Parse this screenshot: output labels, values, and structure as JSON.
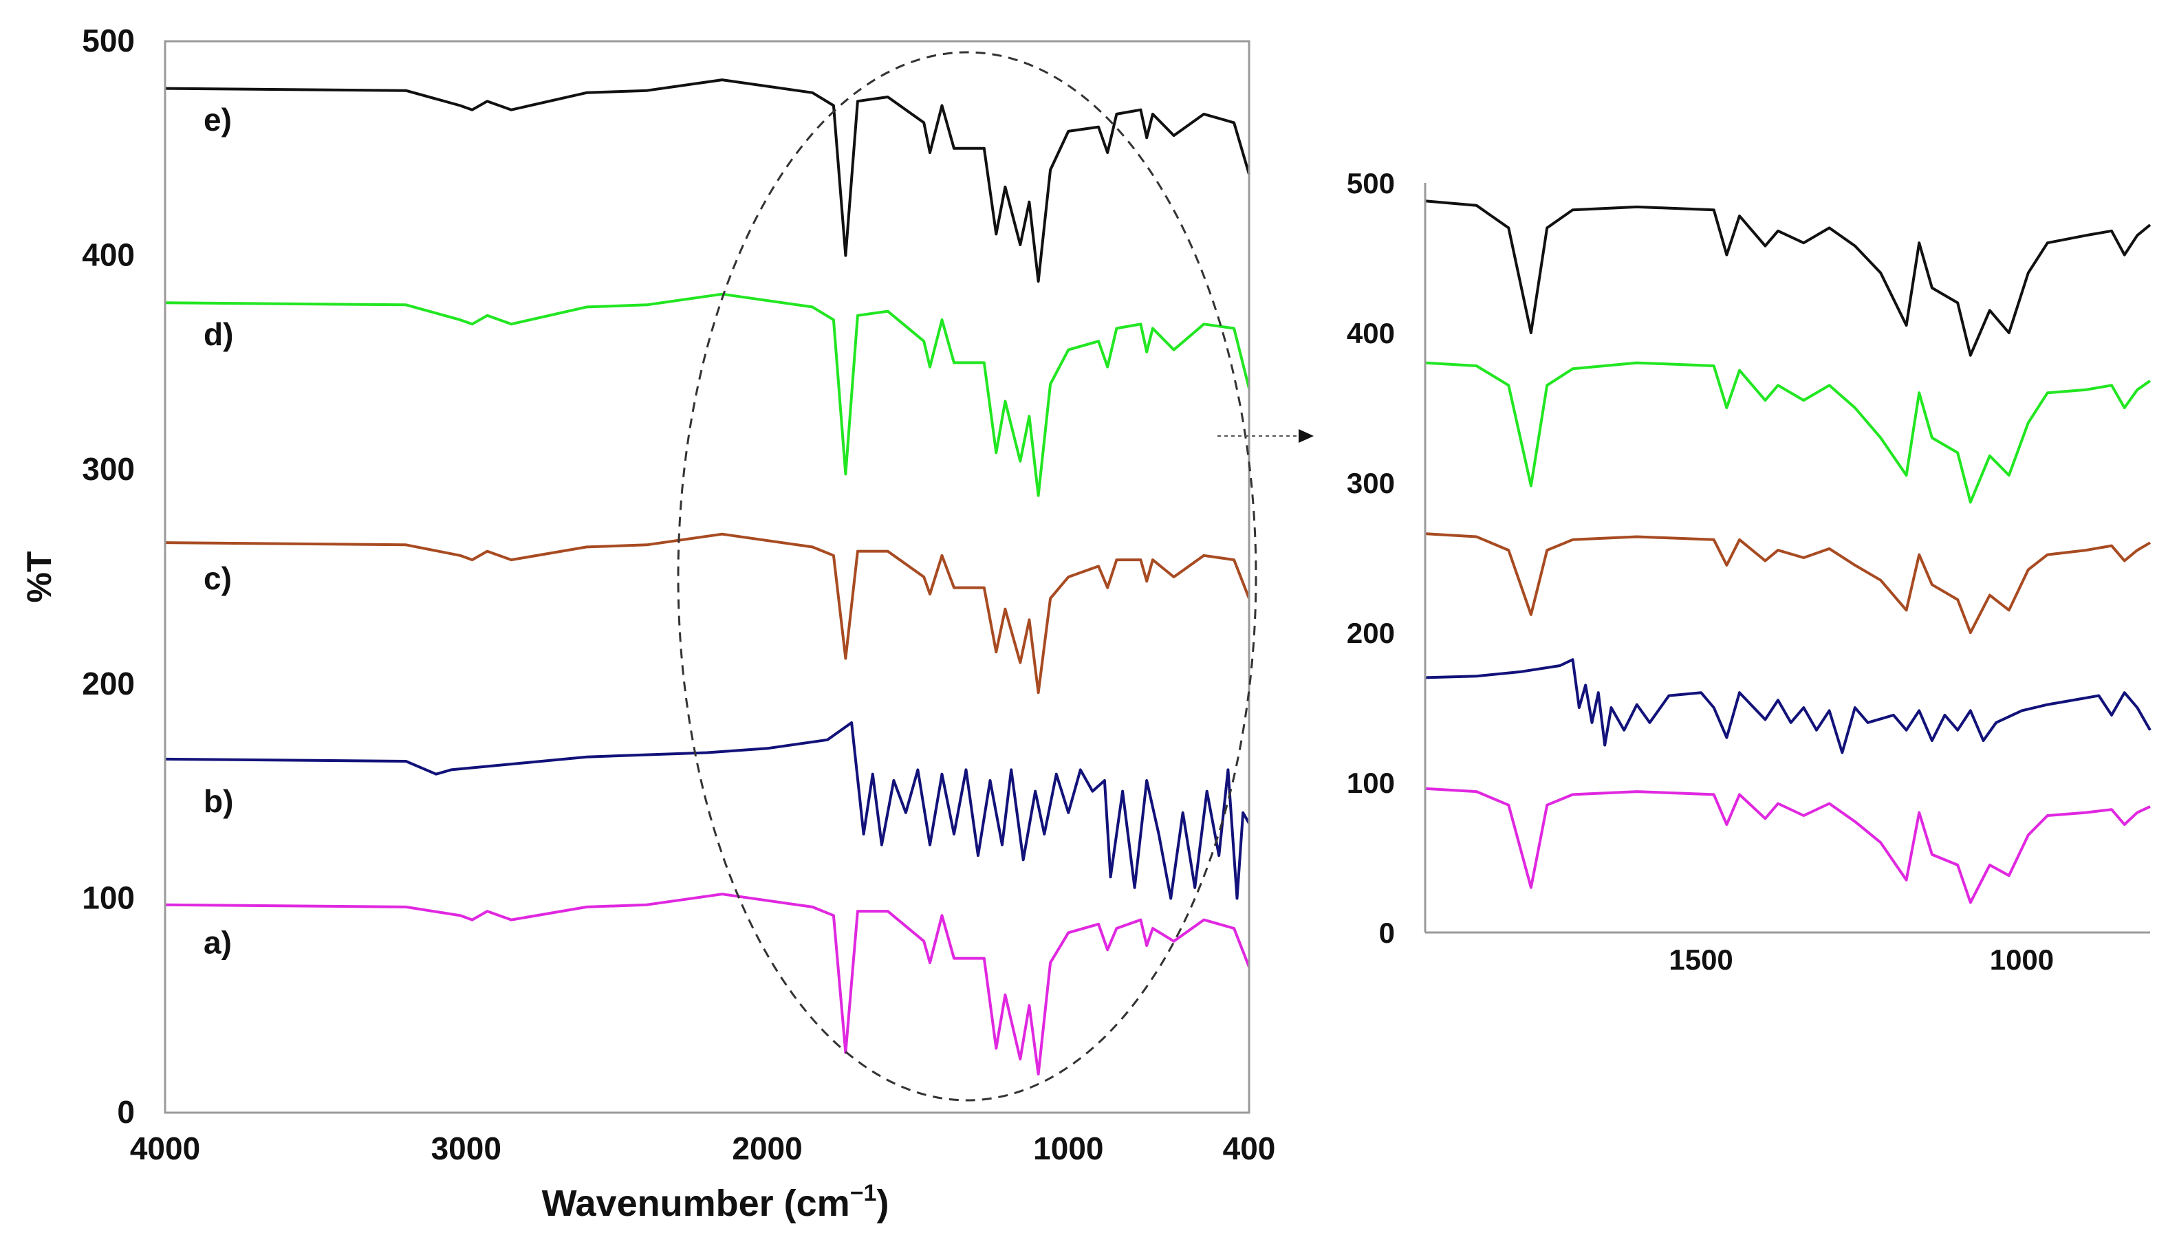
{
  "chart_data": [
    {
      "type": "line",
      "name": "main-spectrum",
      "xlabel_main": "Wavenumber (cm",
      "xlabel_sup": "−1",
      "xlabel_close": ")",
      "ylabel": "%T",
      "xlim": [
        4000,
        400
      ],
      "ylim": [
        0,
        500
      ],
      "x_ticks": [
        {
          "value": 4000,
          "label": "4000"
        },
        {
          "value": 3000,
          "label": "3000"
        },
        {
          "value": 2000,
          "label": "2000"
        },
        {
          "value": 1000,
          "label": "1000"
        },
        {
          "value": 400,
          "label": "400"
        }
      ],
      "y_ticks": [
        {
          "value": 0,
          "label": "0"
        },
        {
          "value": 100,
          "label": "100"
        },
        {
          "value": 200,
          "label": "200"
        },
        {
          "value": 300,
          "label": "300"
        },
        {
          "value": 400,
          "label": "400"
        },
        {
          "value": 500,
          "label": "500"
        }
      ],
      "annotation": "dashed ellipse highlighting the 2200-400 cm-1 region, arrow to zoomed inset",
      "series": [
        {
          "name": "e)",
          "label": "e)",
          "color": "#111111",
          "baseline": 478,
          "label_y": 464,
          "x": [
            4000,
            3200,
            3020,
            2980,
            2930,
            2850,
            2600,
            2400,
            2150,
            1850,
            1780,
            1740,
            1700,
            1600,
            1480,
            1460,
            1420,
            1380,
            1280,
            1240,
            1210,
            1160,
            1130,
            1100,
            1060,
            1000,
            900,
            870,
            840,
            760,
            740,
            720,
            650,
            550,
            450,
            400
          ],
          "y": [
            478,
            477,
            470,
            468,
            472,
            468,
            476,
            477,
            482,
            476,
            470,
            400,
            472,
            474,
            462,
            448,
            470,
            450,
            450,
            410,
            432,
            405,
            425,
            388,
            440,
            458,
            460,
            448,
            466,
            468,
            455,
            466,
            456,
            466,
            462,
            438
          ]
        },
        {
          "name": "d)",
          "label": "d)",
          "color": "#22e622",
          "baseline": 378,
          "label_y": 364,
          "x": [
            4000,
            3200,
            3020,
            2980,
            2930,
            2850,
            2600,
            2400,
            2150,
            1850,
            1780,
            1740,
            1700,
            1600,
            1480,
            1460,
            1420,
            1380,
            1280,
            1240,
            1210,
            1160,
            1130,
            1100,
            1060,
            1000,
            900,
            870,
            840,
            760,
            740,
            720,
            650,
            550,
            450,
            400
          ],
          "y": [
            378,
            377,
            370,
            368,
            372,
            368,
            376,
            377,
            382,
            376,
            370,
            298,
            372,
            374,
            360,
            348,
            370,
            350,
            350,
            308,
            332,
            304,
            325,
            288,
            340,
            356,
            360,
            348,
            366,
            368,
            355,
            366,
            356,
            368,
            366,
            338
          ]
        },
        {
          "name": "c)",
          "label": "c)",
          "color": "#a84b22",
          "baseline": 266,
          "label_y": 250,
          "x": [
            4000,
            3200,
            3020,
            2980,
            2930,
            2850,
            2600,
            2400,
            2150,
            1850,
            1780,
            1740,
            1700,
            1600,
            1480,
            1460,
            1420,
            1380,
            1280,
            1240,
            1210,
            1160,
            1130,
            1100,
            1060,
            1000,
            900,
            870,
            840,
            760,
            740,
            720,
            650,
            550,
            450,
            400
          ],
          "y": [
            266,
            265,
            260,
            258,
            262,
            258,
            264,
            265,
            270,
            264,
            260,
            212,
            262,
            262,
            250,
            242,
            260,
            245,
            245,
            215,
            235,
            210,
            230,
            196,
            240,
            250,
            255,
            245,
            258,
            258,
            248,
            258,
            250,
            260,
            258,
            240
          ]
        },
        {
          "name": "b)",
          "label": "b)",
          "color": "#12127a",
          "baseline": 165,
          "label_y": 146,
          "x": [
            4000,
            3200,
            3100,
            3050,
            2600,
            2200,
            2000,
            1800,
            1720,
            1680,
            1650,
            1620,
            1580,
            1540,
            1500,
            1460,
            1420,
            1380,
            1340,
            1300,
            1260,
            1220,
            1190,
            1150,
            1110,
            1080,
            1040,
            1000,
            960,
            920,
            880,
            860,
            820,
            780,
            740,
            700,
            660,
            620,
            580,
            540,
            500,
            470,
            440,
            420,
            400
          ],
          "y": [
            165,
            164,
            158,
            160,
            166,
            168,
            170,
            174,
            182,
            130,
            158,
            125,
            155,
            140,
            160,
            125,
            158,
            130,
            160,
            120,
            155,
            125,
            160,
            118,
            150,
            130,
            158,
            140,
            160,
            150,
            155,
            110,
            150,
            105,
            155,
            130,
            100,
            140,
            105,
            150,
            120,
            160,
            100,
            140,
            135
          ]
        },
        {
          "name": "a)",
          "label": "a)",
          "color": "#e028e0",
          "baseline": 97,
          "label_y": 80,
          "x": [
            4000,
            3200,
            3020,
            2980,
            2930,
            2850,
            2600,
            2400,
            2150,
            1850,
            1780,
            1740,
            1700,
            1600,
            1480,
            1460,
            1420,
            1380,
            1280,
            1240,
            1210,
            1160,
            1130,
            1100,
            1060,
            1000,
            900,
            870,
            840,
            760,
            740,
            720,
            650,
            550,
            450,
            400
          ],
          "y": [
            97,
            96,
            92,
            90,
            94,
            90,
            96,
            97,
            102,
            96,
            92,
            28,
            94,
            94,
            80,
            70,
            92,
            72,
            72,
            30,
            55,
            25,
            50,
            18,
            70,
            84,
            88,
            76,
            86,
            90,
            78,
            86,
            80,
            90,
            86,
            68
          ]
        }
      ]
    },
    {
      "type": "line",
      "name": "inset-spectrum",
      "xlim": [
        1930,
        800
      ],
      "ylim": [
        0,
        500
      ],
      "x_ticks": [
        {
          "value": 1500,
          "label": "1500"
        },
        {
          "value": 1000,
          "label": "1000"
        }
      ],
      "y_ticks": [
        {
          "value": 0,
          "label": "0"
        },
        {
          "value": 100,
          "label": "100"
        },
        {
          "value": 200,
          "label": "200"
        },
        {
          "value": 300,
          "label": "300"
        },
        {
          "value": 400,
          "label": "400"
        },
        {
          "value": 500,
          "label": "500"
        }
      ],
      "series": [
        {
          "name": "e)",
          "color": "#111111",
          "x": [
            1930,
            1850,
            1800,
            1765,
            1740,
            1700,
            1600,
            1480,
            1460,
            1440,
            1400,
            1380,
            1340,
            1300,
            1260,
            1220,
            1180,
            1160,
            1140,
            1100,
            1080,
            1050,
            1020,
            990,
            960,
            900,
            860,
            840,
            820,
            800
          ],
          "y": [
            488,
            485,
            470,
            400,
            470,
            482,
            484,
            482,
            452,
            478,
            458,
            468,
            460,
            470,
            458,
            440,
            405,
            460,
            430,
            420,
            385,
            415,
            400,
            440,
            460,
            465,
            468,
            452,
            465,
            472
          ]
        },
        {
          "name": "d)",
          "color": "#22e622",
          "x": [
            1930,
            1850,
            1800,
            1765,
            1740,
            1700,
            1600,
            1480,
            1460,
            1440,
            1400,
            1380,
            1340,
            1300,
            1260,
            1220,
            1180,
            1160,
            1140,
            1100,
            1080,
            1050,
            1020,
            990,
            960,
            900,
            860,
            840,
            820,
            800
          ],
          "y": [
            380,
            378,
            365,
            298,
            365,
            376,
            380,
            378,
            350,
            375,
            355,
            365,
            355,
            365,
            350,
            330,
            305,
            360,
            330,
            320,
            287,
            318,
            305,
            340,
            360,
            362,
            365,
            350,
            362,
            368
          ]
        },
        {
          "name": "c)",
          "color": "#a84b22",
          "x": [
            1930,
            1850,
            1800,
            1765,
            1740,
            1700,
            1600,
            1480,
            1460,
            1440,
            1400,
            1380,
            1340,
            1300,
            1260,
            1220,
            1180,
            1160,
            1140,
            1100,
            1080,
            1050,
            1020,
            990,
            960,
            900,
            860,
            840,
            820,
            800
          ],
          "y": [
            266,
            264,
            255,
            212,
            255,
            262,
            264,
            262,
            245,
            262,
            248,
            255,
            250,
            256,
            245,
            235,
            215,
            252,
            232,
            222,
            200,
            225,
            215,
            242,
            252,
            255,
            258,
            248,
            255,
            260
          ]
        },
        {
          "name": "b)",
          "color": "#12127a",
          "x": [
            1930,
            1850,
            1780,
            1720,
            1700,
            1690,
            1680,
            1670,
            1660,
            1650,
            1640,
            1620,
            1600,
            1580,
            1550,
            1500,
            1480,
            1460,
            1440,
            1400,
            1380,
            1360,
            1340,
            1320,
            1300,
            1280,
            1260,
            1240,
            1200,
            1180,
            1160,
            1140,
            1120,
            1100,
            1080,
            1060,
            1040,
            1000,
            960,
            920,
            880,
            860,
            840,
            820,
            800
          ],
          "y": [
            170,
            171,
            174,
            178,
            182,
            150,
            165,
            140,
            160,
            125,
            150,
            135,
            152,
            140,
            158,
            160,
            150,
            130,
            160,
            142,
            155,
            140,
            150,
            135,
            148,
            120,
            150,
            140,
            145,
            135,
            148,
            128,
            145,
            135,
            148,
            128,
            140,
            148,
            152,
            155,
            158,
            145,
            160,
            150,
            135
          ]
        },
        {
          "name": "a)",
          "color": "#e028e0",
          "x": [
            1930,
            1850,
            1800,
            1765,
            1740,
            1700,
            1600,
            1480,
            1460,
            1440,
            1400,
            1380,
            1340,
            1300,
            1260,
            1220,
            1180,
            1160,
            1140,
            1100,
            1080,
            1050,
            1020,
            990,
            960,
            900,
            860,
            840,
            820,
            800
          ],
          "y": [
            96,
            94,
            85,
            30,
            85,
            92,
            94,
            92,
            72,
            92,
            76,
            86,
            78,
            86,
            74,
            60,
            35,
            80,
            52,
            45,
            20,
            45,
            38,
            65,
            78,
            80,
            82,
            72,
            80,
            84
          ]
        }
      ]
    }
  ]
}
